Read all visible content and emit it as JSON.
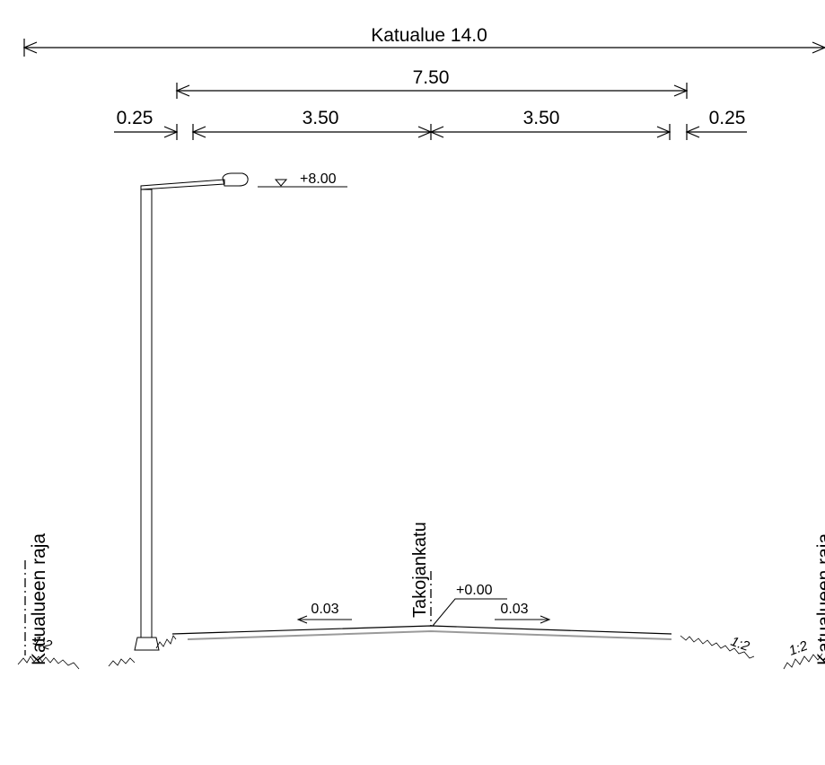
{
  "dimensions": {
    "overall": "Katualue 14.0",
    "carriageway": "7.50",
    "lane_left": "3.50",
    "lane_right": "3.50",
    "edge_left": "0.25",
    "edge_right": "0.25"
  },
  "elevations": {
    "lamp_top": "+8.00",
    "centerline": "+0.00"
  },
  "labels": {
    "street_name": "Takojankatu",
    "boundary_left": "Katualueen raja",
    "boundary_right": "Katualueen raja"
  },
  "slopes": {
    "cross_fall_left": "0.03",
    "cross_fall_right": "0.03",
    "embankment_left": "1:2",
    "embankment_right_inner": "1:2",
    "embankment_right_outer": "1:2"
  }
}
